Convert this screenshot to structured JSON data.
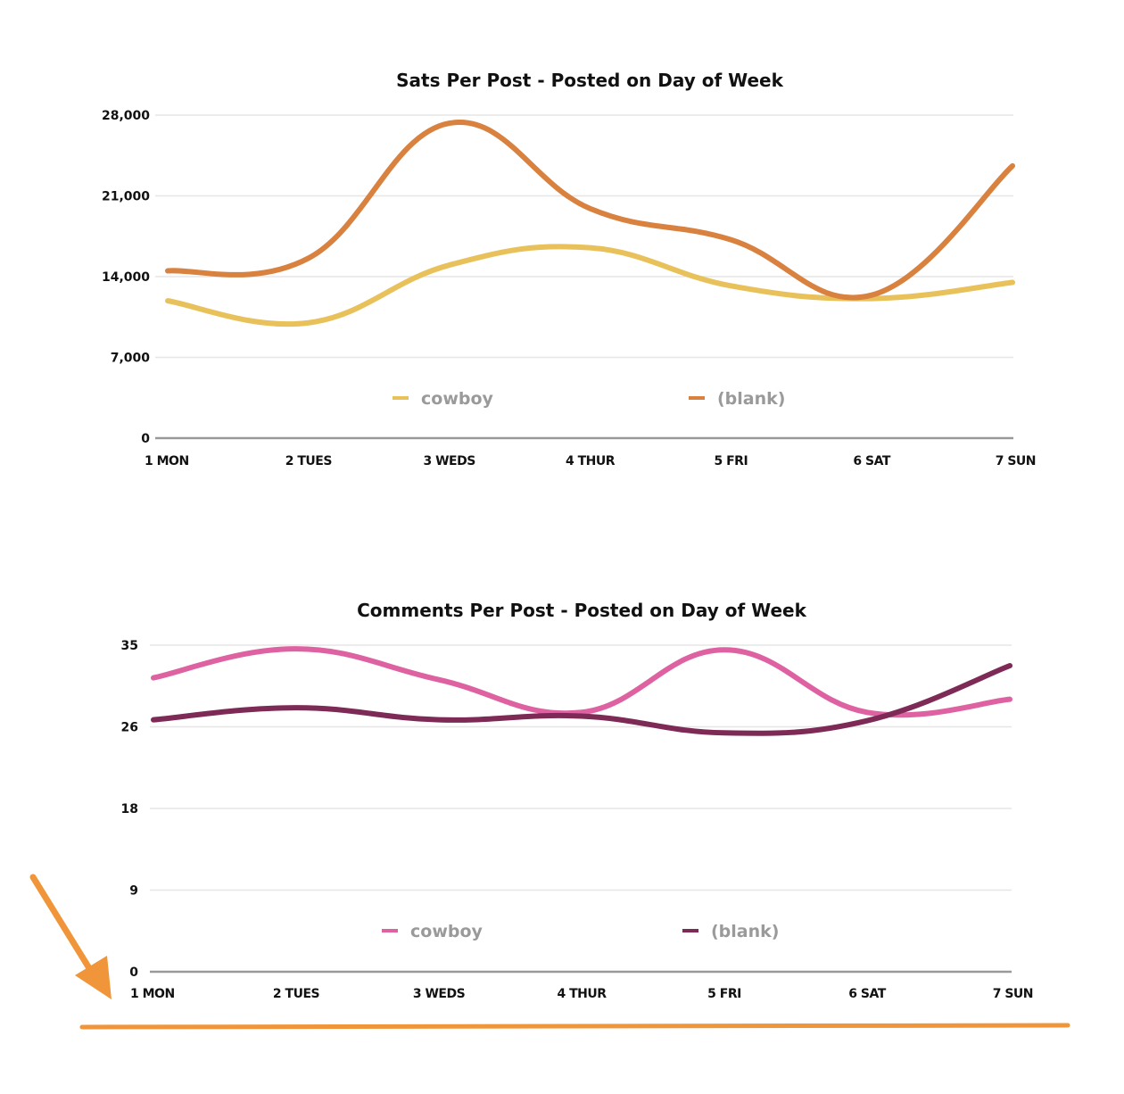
{
  "chart_data": [
    {
      "type": "line",
      "title": "Sats Per Post - Posted on Day of Week",
      "xlabel": "",
      "ylabel": "",
      "categories": [
        "1 MON",
        "2 TUES",
        "3 WEDS",
        "4 THUR",
        "5 FRI",
        "6 SAT",
        "7 SUN"
      ],
      "ylim": [
        0,
        28000
      ],
      "yticks": [
        0,
        7000,
        14000,
        21000,
        28000
      ],
      "ytick_labels": [
        "0",
        "7,000",
        "14,000",
        "21,000",
        "28,000"
      ],
      "grid": true,
      "smooth": true,
      "legend_position": "bottom-inside",
      "series": [
        {
          "name": "cowboy",
          "color": "#E8C15A",
          "values": [
            11900,
            10000,
            15000,
            16500,
            13200,
            12100,
            13500
          ]
        },
        {
          "name": "(blank)",
          "color": "#D9813E",
          "values": [
            14500,
            15600,
            27300,
            19900,
            17200,
            12400,
            23600
          ]
        }
      ]
    },
    {
      "type": "line",
      "title": "Comments Per Post - Posted on Day of Week",
      "xlabel": "",
      "ylabel": "",
      "categories": [
        "1 MON",
        "2 TUES",
        "3 WEDS",
        "4 THUR",
        "5 FRI",
        "6 SAT",
        "7 SUN"
      ],
      "ylim": [
        0,
        35
      ],
      "yticks": [
        0,
        8.75,
        17.5,
        26.25,
        35
      ],
      "ytick_labels": [
        "0",
        "9",
        "18",
        "26",
        "35"
      ],
      "grid": true,
      "smooth": true,
      "legend_position": "bottom-inside",
      "series": [
        {
          "name": "cowboy",
          "color": "#DE62A2",
          "values": [
            31.5,
            34.6,
            31.3,
            27.8,
            34.5,
            27.8,
            29.2
          ]
        },
        {
          "name": "(blank)",
          "color": "#7E2A56",
          "values": [
            27.0,
            28.3,
            27.0,
            27.4,
            25.6,
            26.9,
            32.8
          ]
        }
      ]
    }
  ],
  "annotation": {
    "arrow_color": "#F0953A",
    "underline_color": "#F0953A"
  }
}
